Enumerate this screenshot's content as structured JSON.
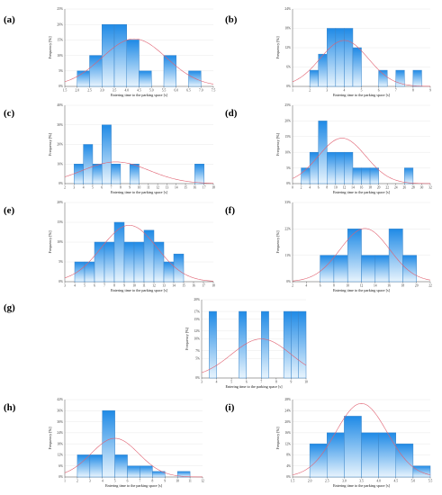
{
  "colors": {
    "bar_top": "#1f8ae6",
    "bar_bottom": "#e8f4fd",
    "bar_stroke": "#3a85c9",
    "curve": "#e06070"
  },
  "chart_data": [
    {
      "panel": "(a)",
      "type": "bar",
      "xlabel": "Entering time to the parking space [s]",
      "ylabel": "Frequency [%]",
      "xticks": [
        "1.5",
        "2.0",
        "2.5",
        "3.0",
        "3.5",
        "4.0",
        "4.5",
        "5.0",
        "5.5",
        "6.0",
        "6.5",
        "7.0",
        "7.5"
      ],
      "xlim": [
        1.5,
        7.5
      ],
      "ylim": [
        0,
        25
      ],
      "yticks": [
        "0%",
        "5%",
        "10%",
        "15%",
        "20%",
        "25%"
      ],
      "bin_width": 0.5,
      "bins": [
        [
          2.0,
          2.5,
          5
        ],
        [
          2.5,
          3.0,
          10
        ],
        [
          3.0,
          3.5,
          20
        ],
        [
          3.5,
          4.0,
          20
        ],
        [
          4.0,
          4.5,
          15
        ],
        [
          4.5,
          5.0,
          5
        ],
        [
          5.5,
          6.0,
          10
        ],
        [
          6.5,
          7.0,
          5
        ]
      ],
      "normal_fit": {
        "mean": 4.3,
        "sd": 1.3
      }
    },
    {
      "panel": "(b)",
      "type": "bar",
      "xlabel": "Entering time to the parking space [s]",
      "ylabel": "Frequency [%]",
      "xticks": [
        "1",
        "2",
        "3",
        "4",
        "5",
        "6",
        "7",
        "8",
        "9"
      ],
      "xlim": [
        1,
        9
      ],
      "ylim": [
        0,
        24
      ],
      "yticks": [
        "0%",
        "6%",
        "12%",
        "18%",
        "24%"
      ],
      "bin_width": 0.5,
      "bins": [
        [
          2.0,
          2.5,
          5
        ],
        [
          2.5,
          3.0,
          10
        ],
        [
          3.0,
          3.5,
          18
        ],
        [
          3.5,
          4.0,
          18
        ],
        [
          4.0,
          4.5,
          18
        ],
        [
          4.5,
          5.0,
          12
        ],
        [
          6.0,
          6.5,
          5
        ],
        [
          7.0,
          7.5,
          5
        ],
        [
          8.0,
          8.5,
          5
        ]
      ],
      "normal_fit": {
        "mean": 4.0,
        "sd": 1.4
      }
    },
    {
      "panel": "(c)",
      "type": "bar",
      "xlabel": "Entering time to the parking space [s]",
      "ylabel": "Frequency [%]",
      "xticks": [
        "2",
        "3",
        "4",
        "5",
        "6",
        "7",
        "8",
        "9",
        "10",
        "11",
        "12",
        "13",
        "14",
        "15",
        "16",
        "17",
        "18"
      ],
      "xlim": [
        2,
        18
      ],
      "ylim": [
        0,
        40
      ],
      "yticks": [
        "0%",
        "10%",
        "20%",
        "30%",
        "40%"
      ],
      "bin_width": 1,
      "bins": [
        [
          3,
          4,
          10
        ],
        [
          4,
          5,
          20
        ],
        [
          5,
          6,
          10
        ],
        [
          6,
          7,
          30
        ],
        [
          7,
          8,
          10
        ],
        [
          9,
          10,
          10
        ],
        [
          16,
          17,
          10
        ]
      ],
      "normal_fit": {
        "mean": 7.5,
        "sd": 3.6
      }
    },
    {
      "panel": "(d)",
      "type": "bar",
      "xlabel": "Entering time to the parking space [s]",
      "ylabel": "Frequency [%]",
      "xticks": [
        "0",
        "2",
        "4",
        "6",
        "8",
        "10",
        "12",
        "14",
        "16",
        "18",
        "20",
        "22",
        "24",
        "26",
        "28",
        "30",
        "32"
      ],
      "xlim": [
        0,
        32
      ],
      "ylim": [
        0,
        25
      ],
      "yticks": [
        "0%",
        "5%",
        "10%",
        "15%",
        "20%",
        "25%"
      ],
      "bin_width": 2,
      "bins": [
        [
          2,
          4,
          5
        ],
        [
          4,
          6,
          10
        ],
        [
          6,
          8,
          20
        ],
        [
          8,
          10,
          10
        ],
        [
          10,
          12,
          10
        ],
        [
          12,
          14,
          10
        ],
        [
          14,
          16,
          5
        ],
        [
          16,
          18,
          5
        ],
        [
          18,
          20,
          5
        ],
        [
          26,
          28,
          5
        ]
      ],
      "normal_fit": {
        "mean": 11.5,
        "sd": 5.5
      }
    },
    {
      "panel": "(e)",
      "type": "bar",
      "xlabel": "Entering time to the parking space [s]",
      "ylabel": "Frequency [%]",
      "xticks": [
        "3",
        "4",
        "5",
        "6",
        "7",
        "8",
        "9",
        "10",
        "11",
        "12",
        "13",
        "14",
        "15",
        "16",
        "17",
        "18"
      ],
      "xlim": [
        3,
        18
      ],
      "ylim": [
        0,
        20
      ],
      "yticks": [
        "0%",
        "5%",
        "10%",
        "15%",
        "20%"
      ],
      "bin_width": 1,
      "bins": [
        [
          4,
          5,
          5
        ],
        [
          5,
          6,
          5
        ],
        [
          6,
          7,
          10
        ],
        [
          7,
          8,
          10
        ],
        [
          8,
          9,
          15
        ],
        [
          9,
          10,
          10
        ],
        [
          10,
          11,
          10
        ],
        [
          11,
          12,
          13
        ],
        [
          12,
          13,
          10
        ],
        [
          13,
          14,
          5
        ],
        [
          14,
          15,
          7
        ]
      ],
      "normal_fit": {
        "mean": 9.5,
        "sd": 2.8
      }
    },
    {
      "panel": "(f)",
      "type": "bar",
      "xlabel": "Entering time to the parking space [s]",
      "ylabel": "Frequency [%]",
      "xticks": [
        "2",
        "4",
        "6",
        "8",
        "10",
        "12",
        "14",
        "16",
        "18",
        "20",
        "22"
      ],
      "xlim": [
        2,
        22
      ],
      "ylim": [
        0,
        33
      ],
      "yticks": [
        "0%",
        "11%",
        "22%",
        "33%"
      ],
      "bin_width": 2,
      "bins": [
        [
          6,
          8,
          11
        ],
        [
          8,
          10,
          11
        ],
        [
          10,
          12,
          22
        ],
        [
          12,
          14,
          11
        ],
        [
          14,
          16,
          11
        ],
        [
          16,
          18,
          22
        ],
        [
          18,
          20,
          11
        ]
      ],
      "normal_fit": {
        "mean": 12.5,
        "sd": 3.6
      }
    },
    {
      "panel": "(g)",
      "type": "bar",
      "xlabel": "Entering time to the parking space [s]",
      "ylabel": "Frequency [%]",
      "xticks": [
        "3",
        "4",
        "5",
        "6",
        "7",
        "8",
        "9",
        "10"
      ],
      "xlim": [
        3,
        10
      ],
      "ylim": [
        0,
        20
      ],
      "yticks": [
        "0%",
        "5%",
        "7%",
        "10%",
        "12%",
        "15%",
        "17%",
        "20%"
      ],
      "bin_width": 0.5,
      "bins": [
        [
          3.5,
          4.0,
          17
        ],
        [
          5.5,
          6.0,
          17
        ],
        [
          7.0,
          7.5,
          17
        ],
        [
          8.5,
          9.0,
          17
        ],
        [
          9.0,
          9.5,
          17
        ],
        [
          9.5,
          10.0,
          17
        ]
      ],
      "normal_fit": {
        "mean": 7.0,
        "sd": 2.0
      }
    },
    {
      "panel": "(h)",
      "type": "bar",
      "xlabel": "Entering time to the parking space [s]",
      "ylabel": "Frequency [%]",
      "xticks": [
        "1",
        "2",
        "3",
        "4",
        "5",
        "6",
        "7",
        "8",
        "9",
        "10",
        "11",
        "12"
      ],
      "xlim": [
        1,
        12
      ],
      "ylim": [
        0,
        42
      ],
      "yticks": [
        "0%",
        "6%",
        "12%",
        "18%",
        "24%",
        "30%",
        "36%",
        "42%"
      ],
      "bin_width": 1,
      "bins": [
        [
          2,
          3,
          12
        ],
        [
          3,
          4,
          12
        ],
        [
          4,
          5,
          36
        ],
        [
          5,
          6,
          12
        ],
        [
          6,
          7,
          6
        ],
        [
          7,
          8,
          6
        ],
        [
          8,
          9,
          3
        ],
        [
          10,
          11,
          3
        ]
      ],
      "normal_fit": {
        "mean": 5.0,
        "sd": 1.9
      }
    },
    {
      "panel": "(i)",
      "type": "bar",
      "xlabel": "Entering time to the parking space [s]",
      "ylabel": "Frequency [%]",
      "xticks": [
        "1.5",
        "2.0",
        "2.5",
        "3.0",
        "3.5",
        "4.0",
        "4.5",
        "5.0",
        "5.5"
      ],
      "xlim": [
        1.5,
        5.5
      ],
      "ylim": [
        0,
        28
      ],
      "yticks": [
        "0%",
        "4%",
        "8%",
        "12%",
        "16%",
        "20%",
        "24%",
        "28%"
      ],
      "bin_width": 0.5,
      "bins": [
        [
          2.0,
          2.5,
          12
        ],
        [
          2.5,
          3.0,
          16
        ],
        [
          3.0,
          3.5,
          22
        ],
        [
          3.5,
          4.0,
          16
        ],
        [
          4.0,
          4.5,
          16
        ],
        [
          4.5,
          5.0,
          12
        ],
        [
          5.0,
          5.5,
          4
        ]
      ],
      "normal_fit": {
        "mean": 3.5,
        "sd": 0.75
      }
    }
  ]
}
